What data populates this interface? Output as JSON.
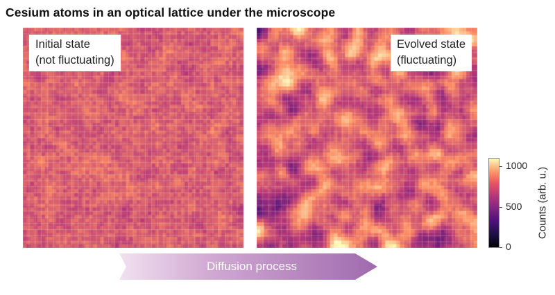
{
  "title": "Cesium atoms in an optical lattice under the microscope",
  "panels": {
    "initial": {
      "line1": "Initial state",
      "line2": "(not fluctuating)"
    },
    "evolved": {
      "line1": "Evolved state",
      "line2": "(fluctuating)"
    }
  },
  "colorbar": {
    "label": "Counts (arb. u.)",
    "ticks": [
      "1000",
      "500",
      "0"
    ],
    "colors": [
      "#000004",
      "#51127c",
      "#b73779",
      "#fc8961",
      "#fcfdbf"
    ]
  },
  "arrow": {
    "label": "Diffusion process"
  }
}
